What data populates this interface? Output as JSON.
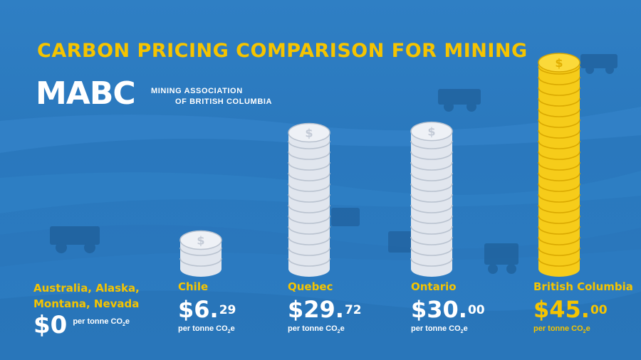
{
  "title": "CARBON PRICING COMPARISON FOR MINING",
  "logo": {
    "mark": "MABC",
    "line1": "MINING ASSOCIATION",
    "line2": "OF BRITISH COLUMBIA"
  },
  "colors": {
    "background": "#2c7cc2",
    "accent": "#f5c400",
    "coin_silver": "#e1e6ee",
    "coin_gold": "#f6cc1a"
  },
  "chart_data": {
    "type": "bar",
    "title": "CARBON PRICING COMPARISON FOR MINING",
    "unit": "per tonne CO2e",
    "categories": [
      "Australia, Alaska, Montana, Nevada",
      "Chile",
      "Quebec",
      "Ontario",
      "British Columbia"
    ],
    "values": [
      0,
      6.29,
      29.72,
      30.0,
      45.0
    ],
    "highlight": "British Columbia",
    "bars": [
      {
        "region_lines": [
          "Australia, Alaska,",
          "Montana, Nevada"
        ],
        "value": 0,
        "whole": "$0",
        "cents": "",
        "unit": "per tonne CO",
        "unit_sub": "2",
        "unit_end": "e",
        "color": "#f5c400"
      },
      {
        "region": "Chile",
        "value": 6.29,
        "whole": "$6.",
        "cents": "29",
        "unit": "per tonne CO",
        "unit_sub": "2",
        "unit_end": "e",
        "color": "#e1e6ee"
      },
      {
        "region": "Quebec",
        "value": 29.72,
        "whole": "$29.",
        "cents": "72",
        "unit": "per tonne CO",
        "unit_sub": "2",
        "unit_end": "e",
        "color": "#e1e6ee"
      },
      {
        "region": "Ontario",
        "value": 30.0,
        "whole": "$30.",
        "cents": "00",
        "unit": "per tonne CO",
        "unit_sub": "2",
        "unit_end": "e",
        "color": "#e1e6ee"
      },
      {
        "region": "British Columbia",
        "value": 45.0,
        "whole": "$45.",
        "cents": "00",
        "unit": "per tonne CO",
        "unit_sub": "2",
        "unit_end": "e",
        "color": "#f6cc1a"
      }
    ],
    "ylim": [
      0,
      45
    ],
    "coin_symbol": "$",
    "grid": false,
    "legend": "none"
  }
}
